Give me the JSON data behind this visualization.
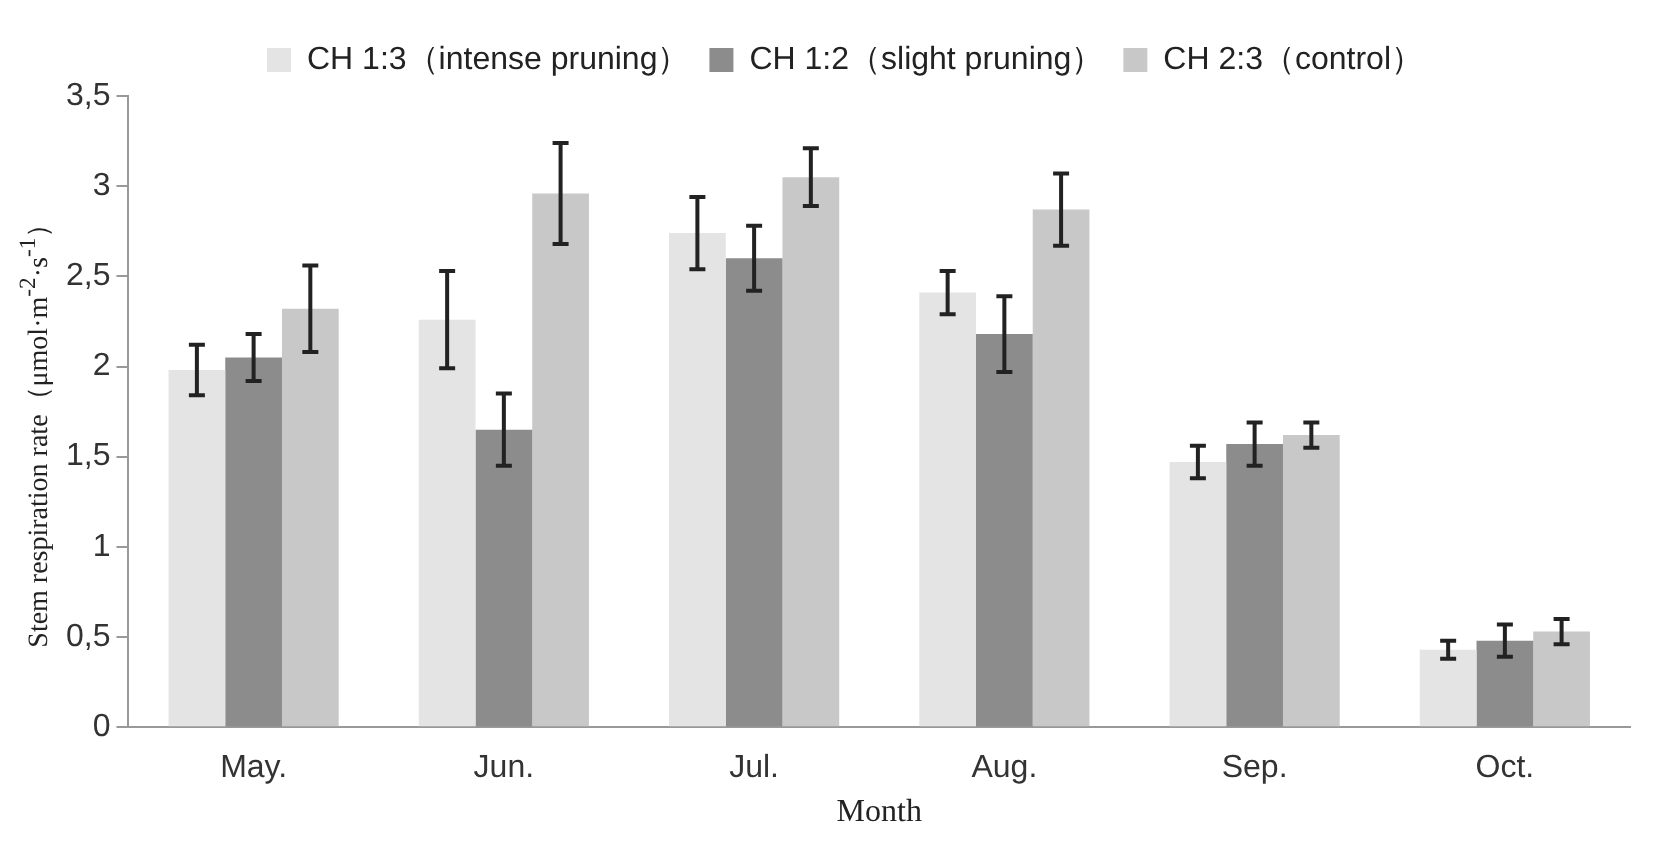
{
  "chart_data": {
    "type": "bar",
    "xlabel": "Month",
    "ylabel": "Stem respiration rate（μmol·m$^{-2}$·s$^{-1}$）",
    "categories": [
      "May.",
      "Jun.",
      "Jul.",
      "Aug.",
      "Sep.",
      "Oct."
    ],
    "series": [
      {
        "name": "CH 1:3（intense pruning）",
        "color": "#e4e4e4",
        "values": [
          1.98,
          2.26,
          2.74,
          2.41,
          1.47,
          0.43
        ],
        "errors": [
          0.14,
          0.27,
          0.2,
          0.12,
          0.09,
          0.05
        ]
      },
      {
        "name": "CH 1:2（slight pruning）",
        "color": "#8c8c8c",
        "values": [
          2.05,
          1.65,
          2.6,
          2.18,
          1.57,
          0.48
        ],
        "errors": [
          0.13,
          0.2,
          0.18,
          0.21,
          0.12,
          0.09
        ]
      },
      {
        "name": "CH 2:3（control）",
        "color": "#c8c8c8",
        "values": [
          2.32,
          2.96,
          3.05,
          2.87,
          1.62,
          0.53
        ],
        "errors": [
          0.24,
          0.28,
          0.16,
          0.2,
          0.07,
          0.07
        ]
      }
    ],
    "ylim": [
      0,
      3.5
    ],
    "yticks": [
      0,
      {
        "value": 0.5,
        "label": "0,5"
      },
      1,
      {
        "value": 1.5,
        "label": "1,5"
      },
      2,
      {
        "value": 2.5,
        "label": "2,5"
      },
      3,
      {
        "value": 3.5,
        "label": "3,5"
      }
    ],
    "grid": false,
    "legend": "top"
  }
}
